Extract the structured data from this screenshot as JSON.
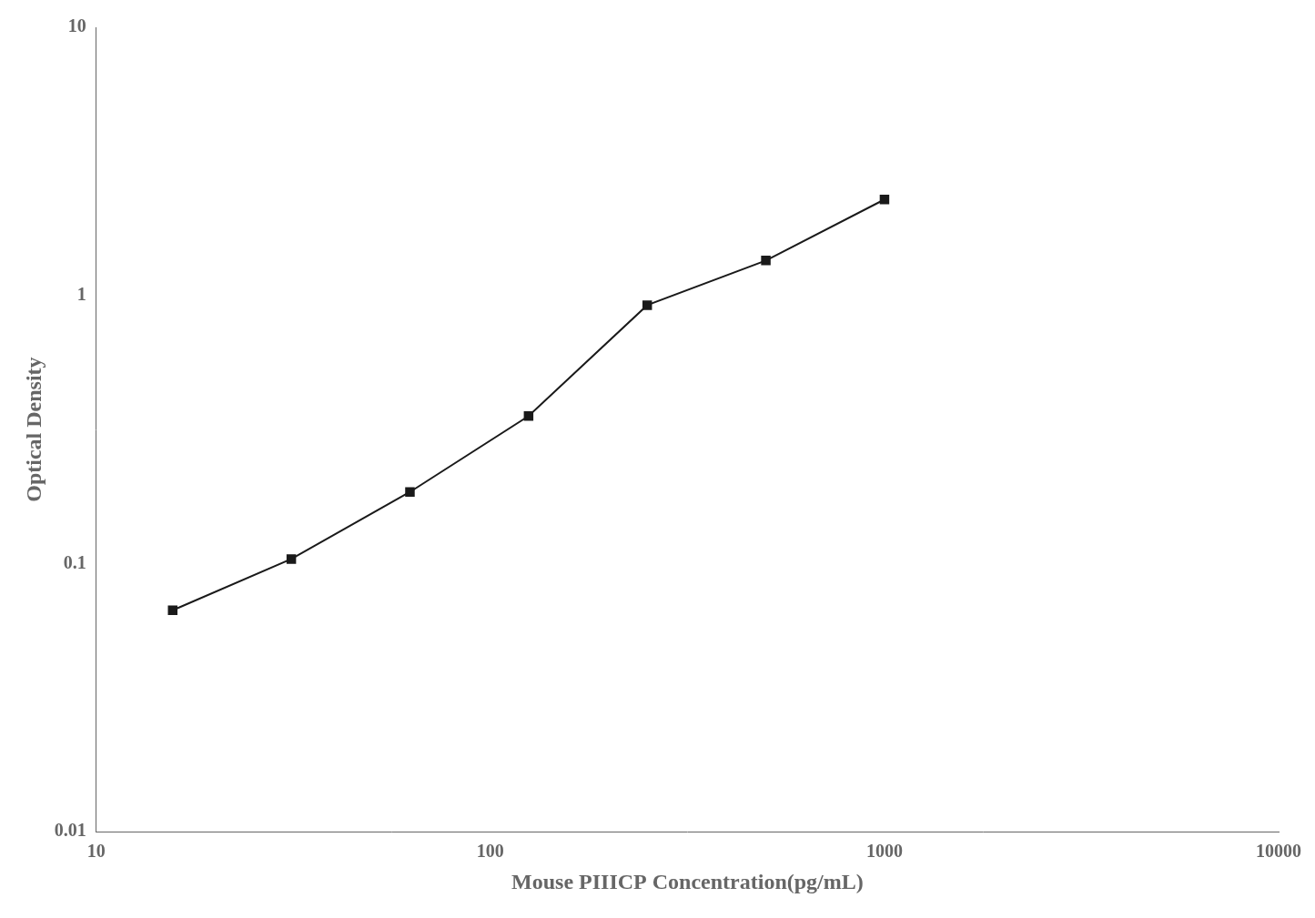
{
  "chart_data": {
    "type": "line",
    "x": [
      15.625,
      31.25,
      62.5,
      125,
      250,
      500,
      1000
    ],
    "values": [
      0.067,
      0.104,
      0.185,
      0.355,
      0.92,
      1.35,
      2.28
    ],
    "xlabel": "Mouse PIIICP Concentration(pg/mL)",
    "ylabel": "Optical Density",
    "xlim": [
      10,
      10000
    ],
    "ylim": [
      0.01,
      10
    ],
    "xticks": [
      10,
      100,
      1000,
      10000
    ],
    "yticks": [
      0.01,
      0.1,
      1,
      10
    ],
    "log": true,
    "grid": false,
    "color": "#1a1a1a",
    "marker": "square"
  }
}
